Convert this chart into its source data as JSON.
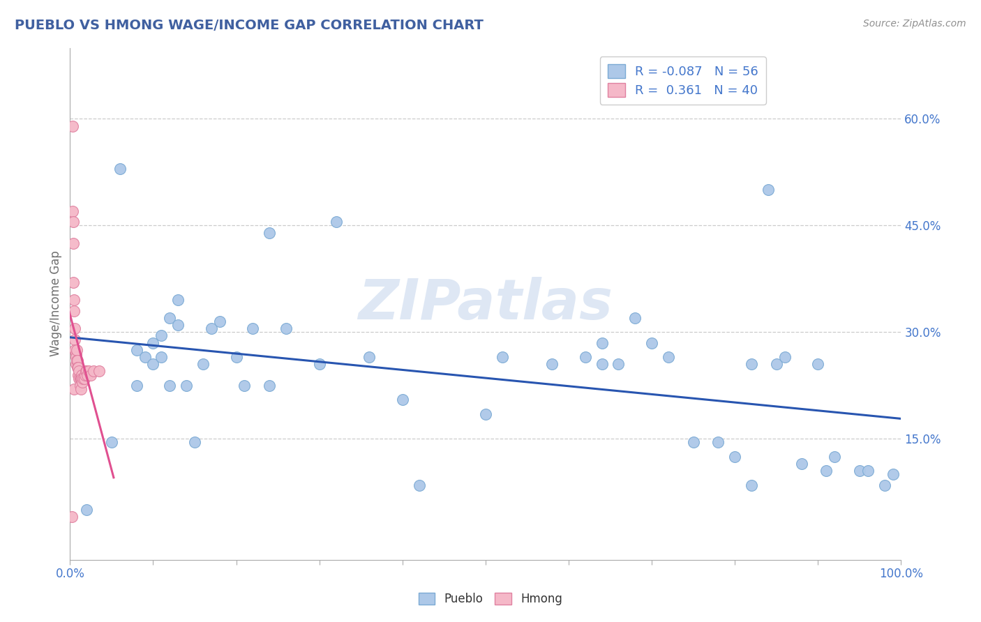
{
  "title": "PUEBLO VS HMONG WAGE/INCOME GAP CORRELATION CHART",
  "source": "Source: ZipAtlas.com",
  "ylabel": "Wage/Income Gap",
  "xlim": [
    0.0,
    1.0
  ],
  "ylim": [
    -0.02,
    0.7
  ],
  "xticks": [
    0.0,
    0.1,
    0.2,
    0.3,
    0.4,
    0.5,
    0.6,
    0.7,
    0.8,
    0.9,
    1.0
  ],
  "xticklabels": [
    "0.0%",
    "",
    "",
    "",
    "",
    "",
    "",
    "",
    "",
    "",
    "100.0%"
  ],
  "yticks_right": [
    0.15,
    0.3,
    0.45,
    0.6
  ],
  "yticklabels_right": [
    "15.0%",
    "30.0%",
    "45.0%",
    "60.0%"
  ],
  "pueblo_color": "#adc8e8",
  "pueblo_edge": "#7baad4",
  "hmong_color": "#f5b8c8",
  "hmong_edge": "#e080a0",
  "line_pueblo_color": "#2855b0",
  "line_hmong_color": "#e05090",
  "pueblo_R": -0.087,
  "pueblo_N": 56,
  "hmong_R": 0.361,
  "hmong_N": 40,
  "watermark_text": "ZIPatlas",
  "pueblo_x": [
    0.02,
    0.05,
    0.06,
    0.08,
    0.08,
    0.09,
    0.1,
    0.1,
    0.11,
    0.11,
    0.12,
    0.12,
    0.13,
    0.13,
    0.14,
    0.15,
    0.16,
    0.17,
    0.18,
    0.2,
    0.21,
    0.22,
    0.24,
    0.24,
    0.26,
    0.3,
    0.32,
    0.36,
    0.4,
    0.42,
    0.5,
    0.52,
    0.58,
    0.62,
    0.64,
    0.64,
    0.66,
    0.68,
    0.7,
    0.72,
    0.75,
    0.78,
    0.8,
    0.82,
    0.82,
    0.84,
    0.85,
    0.86,
    0.88,
    0.9,
    0.91,
    0.92,
    0.95,
    0.96,
    0.98,
    0.99
  ],
  "pueblo_y": [
    0.05,
    0.145,
    0.53,
    0.225,
    0.275,
    0.265,
    0.255,
    0.285,
    0.265,
    0.295,
    0.225,
    0.32,
    0.31,
    0.345,
    0.225,
    0.145,
    0.255,
    0.305,
    0.315,
    0.265,
    0.225,
    0.305,
    0.225,
    0.44,
    0.305,
    0.255,
    0.455,
    0.265,
    0.205,
    0.085,
    0.185,
    0.265,
    0.255,
    0.265,
    0.255,
    0.285,
    0.255,
    0.32,
    0.285,
    0.265,
    0.145,
    0.145,
    0.125,
    0.085,
    0.255,
    0.5,
    0.255,
    0.265,
    0.115,
    0.255,
    0.105,
    0.125,
    0.105,
    0.105,
    0.085,
    0.1
  ],
  "hmong_x": [
    0.002,
    0.003,
    0.003,
    0.004,
    0.004,
    0.004,
    0.005,
    0.005,
    0.005,
    0.006,
    0.006,
    0.006,
    0.007,
    0.007,
    0.007,
    0.008,
    0.008,
    0.009,
    0.009,
    0.01,
    0.01,
    0.011,
    0.011,
    0.012,
    0.012,
    0.013,
    0.013,
    0.014,
    0.014,
    0.015,
    0.016,
    0.017,
    0.018,
    0.019,
    0.02,
    0.021,
    0.022,
    0.025,
    0.028,
    0.035
  ],
  "hmong_y": [
    0.04,
    0.59,
    0.47,
    0.455,
    0.425,
    0.37,
    0.345,
    0.33,
    0.22,
    0.305,
    0.29,
    0.275,
    0.27,
    0.265,
    0.255,
    0.275,
    0.26,
    0.26,
    0.25,
    0.25,
    0.24,
    0.245,
    0.235,
    0.235,
    0.225,
    0.235,
    0.22,
    0.24,
    0.235,
    0.23,
    0.235,
    0.235,
    0.24,
    0.245,
    0.245,
    0.24,
    0.245,
    0.24,
    0.245,
    0.245
  ],
  "background_color": "#ffffff",
  "grid_color": "#cccccc",
  "title_color": "#4060a0",
  "axis_label_color": "#707070",
  "tick_label_color": "#4477cc",
  "source_color": "#909090"
}
